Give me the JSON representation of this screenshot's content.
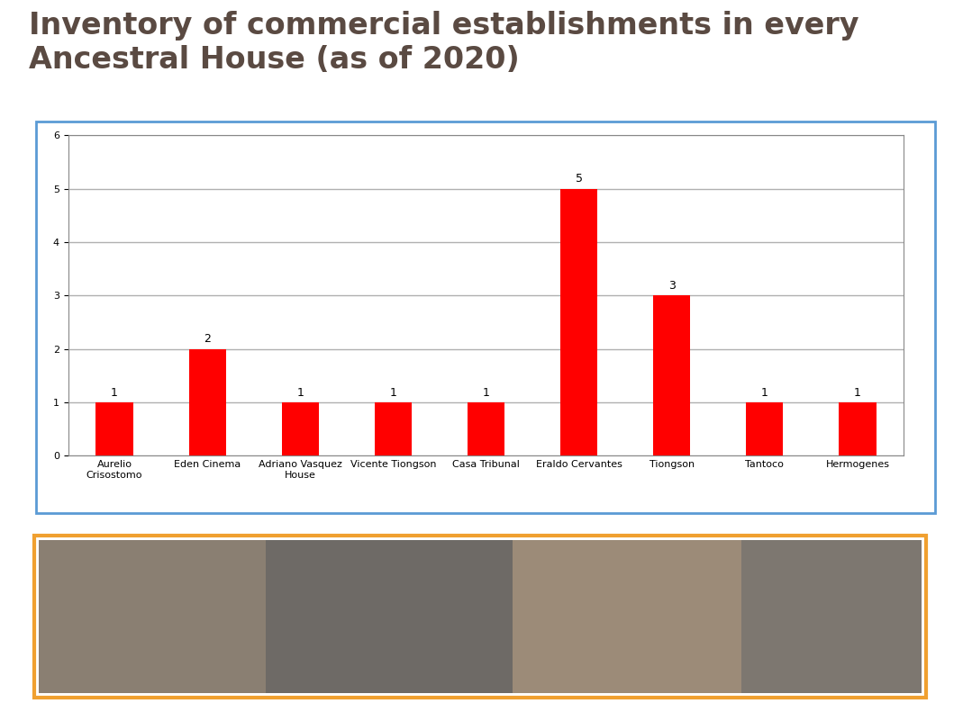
{
  "chart_data": {
    "type": "bar",
    "title": "Inventory of commercial establishments in every Ancestral House (as of 2020)",
    "categories": [
      "Aurelio Crisostomo",
      "Eden Cinema",
      "Adriano Vasquez House",
      "Vicente Tiongson",
      "Casa Tribunal",
      "Eraldo Cervantes",
      "Tiongson",
      "Tantoco",
      "Hermogenes"
    ],
    "values": [
      1,
      2,
      1,
      1,
      1,
      5,
      3,
      1,
      1
    ],
    "color": "#ff0000",
    "ylim": [
      0,
      6
    ],
    "yticks": [
      0,
      1,
      2,
      3,
      4,
      5,
      6
    ],
    "grid": true,
    "data_labels": true
  }
}
